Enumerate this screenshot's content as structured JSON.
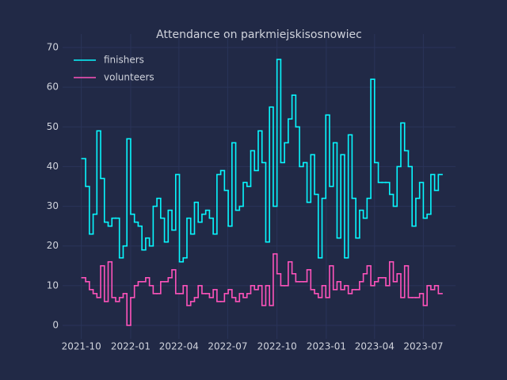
{
  "chart_data": {
    "type": "step",
    "title": "Attendance on parkmiejskisosnowiec",
    "x": [
      "2021-10-02",
      "2021-10-09",
      "2021-10-16",
      "2021-10-23",
      "2021-10-30",
      "2021-11-06",
      "2021-11-13",
      "2021-11-20",
      "2021-11-27",
      "2021-12-04",
      "2021-12-11",
      "2021-12-18",
      "2021-12-25",
      "2022-01-01",
      "2022-01-08",
      "2022-01-15",
      "2022-01-22",
      "2022-01-29",
      "2022-02-05",
      "2022-02-12",
      "2022-02-19",
      "2022-02-26",
      "2022-03-05",
      "2022-03-12",
      "2022-03-19",
      "2022-03-26",
      "2022-04-02",
      "2022-04-09",
      "2022-04-16",
      "2022-04-23",
      "2022-04-30",
      "2022-05-07",
      "2022-05-14",
      "2022-05-21",
      "2022-05-28",
      "2022-06-04",
      "2022-06-11",
      "2022-06-18",
      "2022-06-25",
      "2022-07-02",
      "2022-07-09",
      "2022-07-16",
      "2022-07-23",
      "2022-07-30",
      "2022-08-06",
      "2022-08-13",
      "2022-08-20",
      "2022-08-27",
      "2022-09-03",
      "2022-09-10",
      "2022-09-17",
      "2022-09-24",
      "2022-10-01",
      "2022-10-08",
      "2022-10-15",
      "2022-10-22",
      "2022-10-29",
      "2022-11-05",
      "2022-11-12",
      "2022-11-19",
      "2022-11-26",
      "2022-12-03",
      "2022-12-10",
      "2022-12-17",
      "2022-12-24",
      "2022-12-31",
      "2023-01-07",
      "2023-01-14",
      "2023-01-21",
      "2023-01-28",
      "2023-02-04",
      "2023-02-11",
      "2023-02-18",
      "2023-02-25",
      "2023-03-04",
      "2023-03-11",
      "2023-03-18",
      "2023-03-25",
      "2023-04-01",
      "2023-04-08",
      "2023-04-15",
      "2023-04-22",
      "2023-04-29",
      "2023-05-06",
      "2023-05-13",
      "2023-05-20",
      "2023-05-27",
      "2023-06-03",
      "2023-06-10",
      "2023-06-17",
      "2023-06-24",
      "2023-07-01",
      "2023-07-08",
      "2023-07-15",
      "2023-07-22",
      "2023-07-29"
    ],
    "series": [
      {
        "name": "finishers",
        "color": "#08F7FE",
        "values": [
          42,
          35,
          23,
          28,
          49,
          37,
          26,
          25,
          27,
          27,
          17,
          20,
          47,
          28,
          26,
          25,
          19,
          22,
          20,
          30,
          32,
          27,
          21,
          29,
          24,
          38,
          16,
          17,
          27,
          23,
          31,
          26,
          28,
          29,
          27,
          23,
          38,
          39,
          34,
          25,
          46,
          29,
          30,
          36,
          35,
          44,
          39,
          49,
          41,
          21,
          55,
          30,
          67,
          41,
          46,
          52,
          58,
          50,
          40,
          41,
          31,
          43,
          33,
          17,
          32,
          53,
          35,
          46,
          22,
          43,
          17,
          48,
          32,
          22,
          29,
          27,
          32,
          62,
          41,
          36,
          36,
          36,
          33,
          30,
          40,
          51,
          44,
          40,
          25,
          32,
          36,
          27,
          28,
          38,
          34,
          38
        ]
      },
      {
        "name": "volunteers",
        "color": "#FE53BB",
        "values": [
          12,
          11,
          9,
          8,
          7,
          15,
          6,
          16,
          7,
          6,
          7,
          8,
          0,
          7,
          10,
          11,
          11,
          12,
          10,
          8,
          8,
          11,
          11,
          12,
          14,
          8,
          8,
          10,
          5,
          6,
          7,
          10,
          8,
          8,
          7,
          9,
          6,
          6,
          8,
          9,
          7,
          6,
          8,
          7,
          8,
          10,
          9,
          10,
          5,
          10,
          5,
          18,
          13,
          10,
          10,
          16,
          13,
          11,
          11,
          11,
          14,
          9,
          8,
          7,
          10,
          7,
          15,
          9,
          11,
          9,
          10,
          8,
          9,
          9,
          11,
          13,
          15,
          10,
          11,
          12,
          12,
          10,
          16,
          11,
          13,
          7,
          15,
          7,
          7,
          7,
          8,
          5,
          10,
          9,
          10,
          8
        ]
      }
    ],
    "xlim": [
      "2021-08-27",
      "2023-08-30"
    ],
    "xticks": [
      "2021-10",
      "2022-01",
      "2022-04",
      "2022-07",
      "2022-10",
      "2023-01",
      "2023-04",
      "2023-07"
    ],
    "ylim": [
      -3.4,
      73.4
    ],
    "yticks": [
      0,
      10,
      20,
      30,
      40,
      50,
      60,
      70
    ],
    "grid": true,
    "legend": "upper-left"
  }
}
